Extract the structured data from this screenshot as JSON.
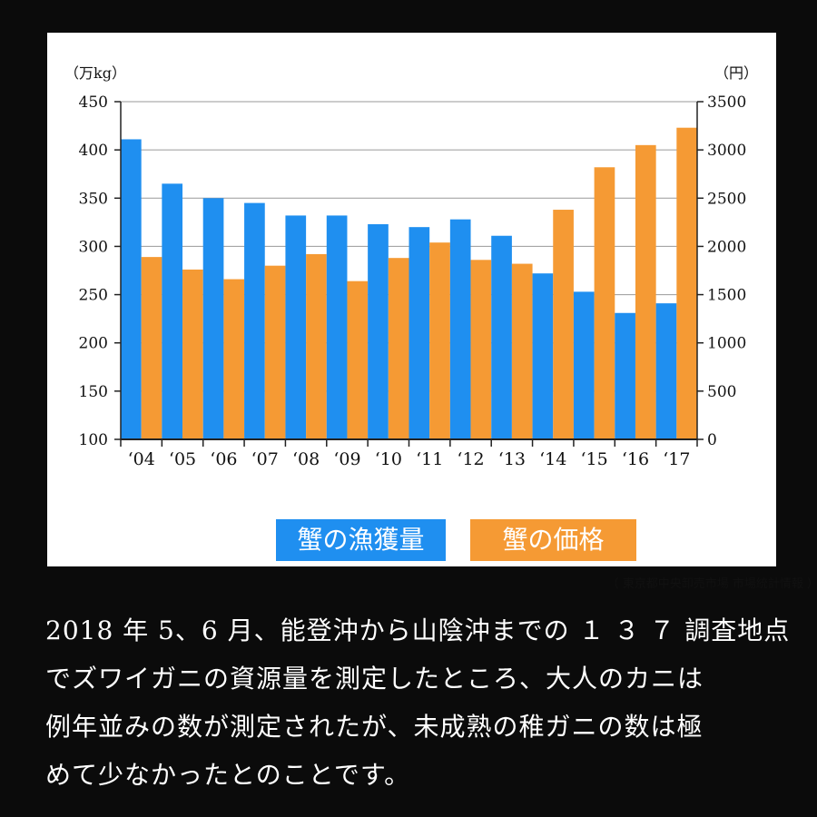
{
  "chart_data": {
    "type": "bar",
    "categories": [
      "‘04",
      "‘05",
      "‘06",
      "‘07",
      "‘08",
      "‘09",
      "‘10",
      "‘11",
      "‘12",
      "‘13",
      "‘14",
      "‘15",
      "‘16",
      "‘17"
    ],
    "series": [
      {
        "name": "蟹の漁獲量",
        "axis": "left",
        "values": [
          411,
          365,
          350,
          345,
          332,
          332,
          323,
          320,
          328,
          311,
          272,
          253,
          231,
          241
        ]
      },
      {
        "name": "蟹の価格",
        "axis": "right",
        "values": [
          1890,
          1760,
          1660,
          1800,
          1920,
          1640,
          1880,
          2040,
          1860,
          1820,
          2380,
          2820,
          3050,
          3230
        ]
      }
    ],
    "y_left": {
      "label": "（万kg）",
      "min": 100,
      "max": 450,
      "ticks": [
        100,
        150,
        200,
        250,
        300,
        350,
        400,
        450
      ]
    },
    "y_right": {
      "label": "（円）",
      "min": 0,
      "max": 3500,
      "ticks": [
        0,
        500,
        1000,
        1500,
        2000,
        2500,
        3000,
        3500
      ]
    },
    "grid": true,
    "legend": "bottom-center",
    "colors": {
      "fish": "#1f8ff0",
      "price": "#f59a34"
    }
  },
  "legend": {
    "fish_label": "蟹の漁獲量",
    "price_label": "蟹の価格"
  },
  "source": "（ 東京都中央卸売市場 市場統計情報 ）",
  "caption": {
    "lines": [
      "2018 年 5、6 月、能登沖から山陰沖までの １ ３ ７ 調査地点",
      "でズワイガニの資源量を測定したところ、大人のカニは",
      "例年並みの数が測定されたが、未成熟の稚ガニの数は極",
      "めて少なかったとのことです。"
    ]
  }
}
